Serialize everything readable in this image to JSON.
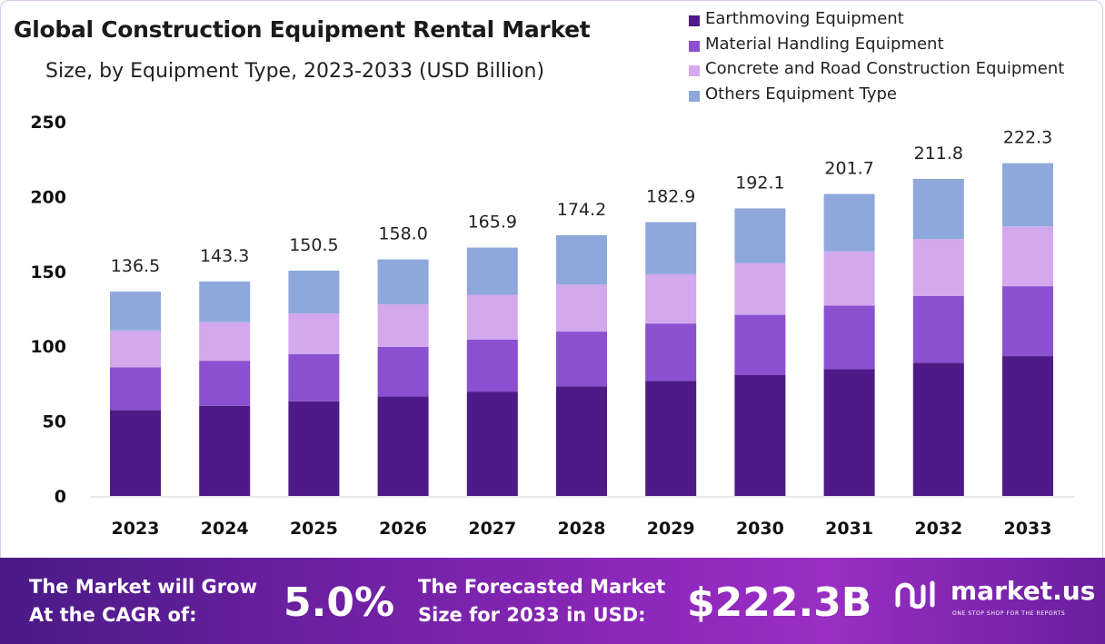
{
  "chart_data": {
    "type": "bar",
    "stacked": true,
    "title": "Global Construction Equipment Rental Market",
    "subtitle": "Size, by Equipment Type, 2023-2033 (USD Billion)",
    "categories": [
      "2023",
      "2024",
      "2025",
      "2026",
      "2027",
      "2028",
      "2029",
      "2030",
      "2031",
      "2032",
      "2033"
    ],
    "totals": [
      "136.5",
      "143.3",
      "150.5",
      "158.0",
      "165.9",
      "174.2",
      "182.9",
      "192.1",
      "201.7",
      "211.8",
      "222.3"
    ],
    "series": [
      {
        "name": "Earthmoving Equipment",
        "color": "#4e1a87",
        "values": [
          57.3,
          60.2,
          63.2,
          66.4,
          69.7,
          73.2,
          76.8,
          80.7,
          84.7,
          89.0,
          93.4
        ]
      },
      {
        "name": "Material Handling Equipment",
        "color": "#8a50cf",
        "values": [
          28.7,
          30.1,
          31.6,
          33.2,
          34.8,
          36.6,
          38.4,
          40.3,
          42.4,
          44.5,
          46.7
        ]
      },
      {
        "name": "Concrete and Road Construction Equipment",
        "color": "#d3a8ec",
        "values": [
          24.6,
          25.8,
          27.1,
          28.4,
          29.9,
          31.4,
          32.9,
          34.6,
          36.3,
          38.1,
          40.0
        ]
      },
      {
        "name": "Others Equipment Type",
        "color": "#8ea8dc",
        "values": [
          25.9,
          27.2,
          28.6,
          30.0,
          31.5,
          33.0,
          34.8,
          36.5,
          38.3,
          40.2,
          42.2
        ]
      }
    ],
    "ylim": [
      0,
      250
    ],
    "yticks": [
      "0",
      "50",
      "100",
      "150",
      "200",
      "250"
    ],
    "grid": false,
    "legend_position": "top-right"
  },
  "banner": {
    "cagr_label_line1": "The Market will Grow",
    "cagr_label_line2": "At the CAGR of:",
    "cagr_value": "5.0%",
    "forecast_label_line1": "The Forecasted Market",
    "forecast_label_line2": "Size for 2033 in USD:",
    "forecast_value": "$222.3B",
    "brand_name": "market.us",
    "brand_tagline": "ONE STOP SHOP FOR THE REPORTS"
  }
}
